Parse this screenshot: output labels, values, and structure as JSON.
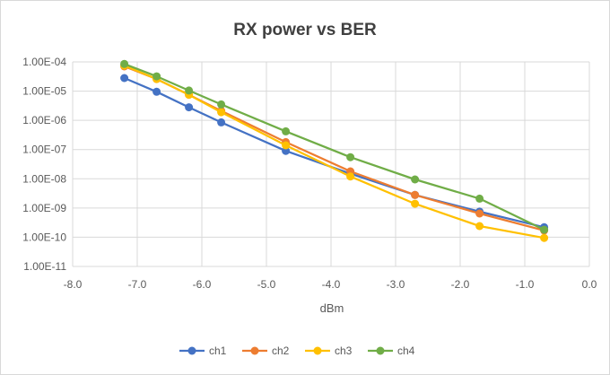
{
  "chart_data": {
    "type": "scatter",
    "title": "RX power vs BER",
    "xlabel": "dBm",
    "ylabel": "",
    "xlim": [
      -8.0,
      0.0
    ],
    "x_ticks": [
      "-8.0",
      "-7.0",
      "-6.0",
      "-5.0",
      "-4.0",
      "-3.0",
      "-2.0",
      "-1.0",
      "0.0"
    ],
    "y_scale": "log",
    "ylim": [
      1e-11,
      0.0001
    ],
    "y_ticks": [
      "1.00E-11",
      "1.00E-10",
      "1.00E-09",
      "1.00E-08",
      "1.00E-07",
      "1.00E-06",
      "1.00E-05",
      "1.00E-04"
    ],
    "grid": true,
    "legend_position": "bottom",
    "x": [
      -7.2,
      -6.7,
      -6.2,
      -5.7,
      -4.7,
      -3.7,
      -2.7,
      -1.7,
      -0.7
    ],
    "series": [
      {
        "name": "ch1",
        "color": "#4472c4",
        "values": [
          2.8e-05,
          9.5e-06,
          2.8e-06,
          8.5e-07,
          9e-08,
          1.5e-08,
          2.8e-09,
          7.5e-10,
          2.2e-10
        ]
      },
      {
        "name": "ch2",
        "color": "#ed7d31",
        "values": [
          7e-05,
          2.6e-05,
          7.5e-06,
          2.1e-06,
          1.8e-07,
          1.8e-08,
          2.8e-09,
          6.5e-10,
          1.7e-10
        ]
      },
      {
        "name": "ch3",
        "color": "#ffc000",
        "values": [
          7.5e-05,
          2.6e-05,
          7.5e-06,
          1.9e-06,
          1.4e-07,
          1.2e-08,
          1.4e-09,
          2.4e-10,
          9.5e-11
        ]
      },
      {
        "name": "ch4",
        "color": "#70ad47",
        "values": [
          8.5e-05,
          3.2e-05,
          1.05e-05,
          3.5e-06,
          4.2e-07,
          5.5e-08,
          9.5e-09,
          2.1e-09,
          1.8e-10
        ]
      }
    ]
  }
}
